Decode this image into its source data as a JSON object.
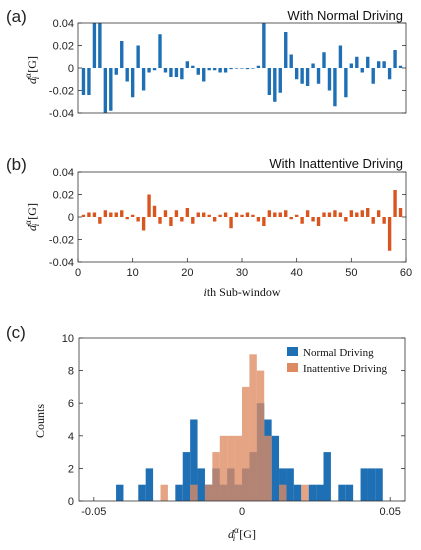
{
  "colors": {
    "normal": "#1f6fb4",
    "inattentive": "#d9551f",
    "normal_hist": "#1f6fb4",
    "inattentive_hist": "#de8a60",
    "axis": "#333333"
  },
  "chart_data": [
    {
      "type": "bar",
      "panel_label": "(a)",
      "title": "With Normal Driving",
      "xlabel": "",
      "ylabel_main": "d",
      "ylabel_sup": "α",
      "ylabel_sub": "i",
      "ylabel_unit": "[G]",
      "xlim": [
        0,
        60
      ],
      "ylim": [
        -0.04,
        0.04
      ],
      "yticks": [
        -0.04,
        -0.02,
        0,
        0.02,
        0.04
      ],
      "ytick_labels": [
        "-0.04",
        "-0.02",
        "0",
        "0.02",
        "0.04"
      ],
      "series": [
        {
          "x": [
            1,
            2,
            3,
            4,
            5,
            6,
            7,
            8,
            9,
            10,
            11,
            12,
            13,
            14,
            15,
            16,
            17,
            18,
            19,
            20,
            21,
            22,
            23,
            24,
            25,
            26,
            27,
            28,
            29,
            30,
            31,
            32,
            33,
            34,
            35,
            36,
            37,
            38,
            39,
            40,
            41,
            42,
            43,
            44,
            45,
            46,
            47,
            48,
            49,
            50,
            51,
            52,
            53,
            54,
            55,
            56,
            57,
            58,
            59
          ],
          "values": [
            -0.024,
            -0.024,
            0.04,
            0.04,
            -0.04,
            -0.038,
            -0.006,
            0.024,
            -0.012,
            -0.026,
            0.02,
            -0.02,
            -0.004,
            -0.002,
            0.03,
            -0.004,
            -0.008,
            -0.008,
            -0.01,
            0.006,
            0.002,
            -0.006,
            -0.012,
            -0.002,
            -0.002,
            -0.004,
            -0.004,
            -0.001,
            0.0,
            0.0,
            -0.001,
            0.0,
            0.002,
            0.04,
            -0.024,
            -0.03,
            -0.022,
            0.032,
            0.012,
            -0.01,
            -0.014,
            -0.016,
            0.004,
            -0.014,
            0.014,
            -0.02,
            -0.034,
            0.02,
            -0.026,
            0.004,
            0.01,
            -0.004,
            0.01,
            -0.014,
            0.006,
            0.006,
            -0.01,
            0.016,
            0.002
          ]
        }
      ]
    },
    {
      "type": "bar",
      "panel_label": "(b)",
      "title": "With Inattentive Driving",
      "xlabel_italic": "i",
      "xlabel_rest": "th Sub-window",
      "ylabel_main": "d",
      "ylabel_sup": "α",
      "ylabel_sub": "i",
      "ylabel_unit": "[G]",
      "xlim": [
        0,
        60
      ],
      "ylim": [
        -0.04,
        0.04
      ],
      "xticks": [
        0,
        10,
        20,
        30,
        40,
        50,
        60
      ],
      "xtick_labels": [
        "0",
        "10",
        "20",
        "30",
        "40",
        "50",
        "60"
      ],
      "yticks": [
        -0.04,
        -0.02,
        0,
        0.02,
        0.04
      ],
      "ytick_labels": [
        "-0.04",
        "-0.02",
        "0",
        "0.02",
        "0.04"
      ],
      "series": [
        {
          "x": [
            1,
            2,
            3,
            4,
            5,
            6,
            7,
            8,
            9,
            10,
            11,
            12,
            13,
            14,
            15,
            16,
            17,
            18,
            19,
            20,
            21,
            22,
            23,
            24,
            25,
            26,
            27,
            28,
            29,
            30,
            31,
            32,
            33,
            34,
            35,
            36,
            37,
            38,
            39,
            40,
            41,
            42,
            43,
            44,
            45,
            46,
            47,
            48,
            49,
            50,
            51,
            52,
            53,
            54,
            55,
            56,
            57,
            58,
            59
          ],
          "values": [
            0.002,
            0.004,
            0.004,
            -0.006,
            0.006,
            0.004,
            0.004,
            0.006,
            -0.002,
            0.002,
            -0.004,
            -0.012,
            0.02,
            0.01,
            -0.006,
            0.006,
            -0.008,
            0.006,
            -0.004,
            0.008,
            -0.006,
            0.004,
            0.004,
            0.002,
            -0.004,
            0.002,
            0.004,
            -0.01,
            0.004,
            0.002,
            0.004,
            0.002,
            -0.004,
            -0.008,
            0.006,
            0.004,
            0.004,
            0.006,
            -0.002,
            0.002,
            -0.006,
            0.006,
            -0.004,
            -0.008,
            0.004,
            0.004,
            0.006,
            0.004,
            -0.004,
            0.006,
            0.004,
            0.006,
            0.008,
            -0.006,
            0.006,
            -0.006,
            -0.03,
            0.024,
            0.008
          ]
        }
      ]
    },
    {
      "type": "bar",
      "subtype": "histogram",
      "panel_label": "(c)",
      "xlabel_main": "d",
      "xlabel_sup": "α",
      "xlabel_sub": "i",
      "xlabel_unit": "[G]",
      "ylabel": "Counts",
      "xlim": [
        -0.055,
        0.055
      ],
      "ylim": [
        0,
        10
      ],
      "bin_width": 0.0025,
      "xticks": [
        -0.05,
        0,
        0.05
      ],
      "xtick_labels": [
        "-0.05",
        "0",
        "0.05"
      ],
      "yticks": [
        0,
        2,
        4,
        6,
        8,
        10
      ],
      "ytick_labels": [
        "0",
        "2",
        "4",
        "6",
        "8",
        "10"
      ],
      "legend_position": "top-right",
      "series": [
        {
          "name": "Normal Driving",
          "bin_starts": [
            -0.0425,
            -0.035,
            -0.0325,
            -0.0225,
            -0.02,
            -0.0175,
            -0.015,
            -0.0125,
            -0.01,
            -0.0075,
            -0.005,
            -0.0025,
            0.0,
            0.0025,
            0.005,
            0.0075,
            0.01,
            0.0125,
            0.015,
            0.0175,
            0.0225,
            0.025,
            0.0275,
            0.0325,
            0.035,
            0.04,
            0.0425,
            0.045
          ],
          "counts": [
            1,
            1,
            2,
            1,
            3,
            5,
            2,
            1,
            2,
            1,
            2,
            1,
            2,
            3,
            6,
            5,
            4,
            2,
            2,
            1,
            1,
            1,
            3,
            1,
            1,
            2,
            2,
            2
          ]
        },
        {
          "name": "Inattentive Driving",
          "bin_starts": [
            -0.0275,
            -0.0175,
            -0.0125,
            -0.01,
            -0.0075,
            -0.005,
            -0.0025,
            0.0,
            0.0025,
            0.005,
            0.0075,
            0.0125,
            0.02
          ],
          "counts": [
            1,
            1,
            1,
            3,
            4,
            4,
            4,
            7,
            9,
            8,
            4,
            1,
            1
          ]
        }
      ]
    }
  ]
}
